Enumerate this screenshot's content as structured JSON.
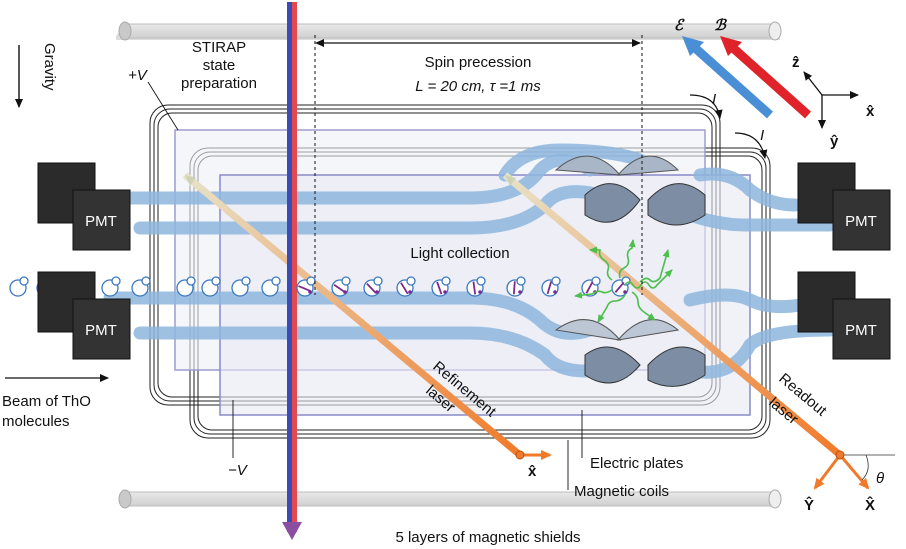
{
  "labels": {
    "gravity": "Gravity",
    "stirap": [
      "STIRAP",
      "state",
      "preparation"
    ],
    "plus_v": "+V",
    "minus_v": "−V",
    "spin_precession": "Spin precession",
    "spin_params": "L = 20 cm, τ =1 ms",
    "light_collection": "Light collection",
    "beam": [
      "Beam of ThO",
      "molecules"
    ],
    "refinement": [
      "Refinement",
      "laser"
    ],
    "readout": [
      "Readout",
      "laser"
    ],
    "electric_plates": "Electric plates",
    "magnetic_coils": "Magnetic coils",
    "shields": "5 layers of magnetic shields",
    "pmt": "PMT",
    "E_field": "ℰ",
    "B_field": "ℬ",
    "current": "I",
    "axis_x": "x̂",
    "axis_y": "ŷ",
    "axis_z": "ẑ",
    "axis_X": "X̂",
    "axis_Y": "Ŷ",
    "theta": "θ"
  },
  "colors": {
    "light_guide": "#8db6dd",
    "pmt": "#2b2b2b",
    "refinement_laser": "#f07a2a",
    "readout_laser": "#f07a2a",
    "e_arrow": "#4a8fd6",
    "b_arrow": "#e0232b",
    "fluorescence": "#4cbf4c",
    "lens": "#7d8da3",
    "plates": "#8a8ac8"
  }
}
